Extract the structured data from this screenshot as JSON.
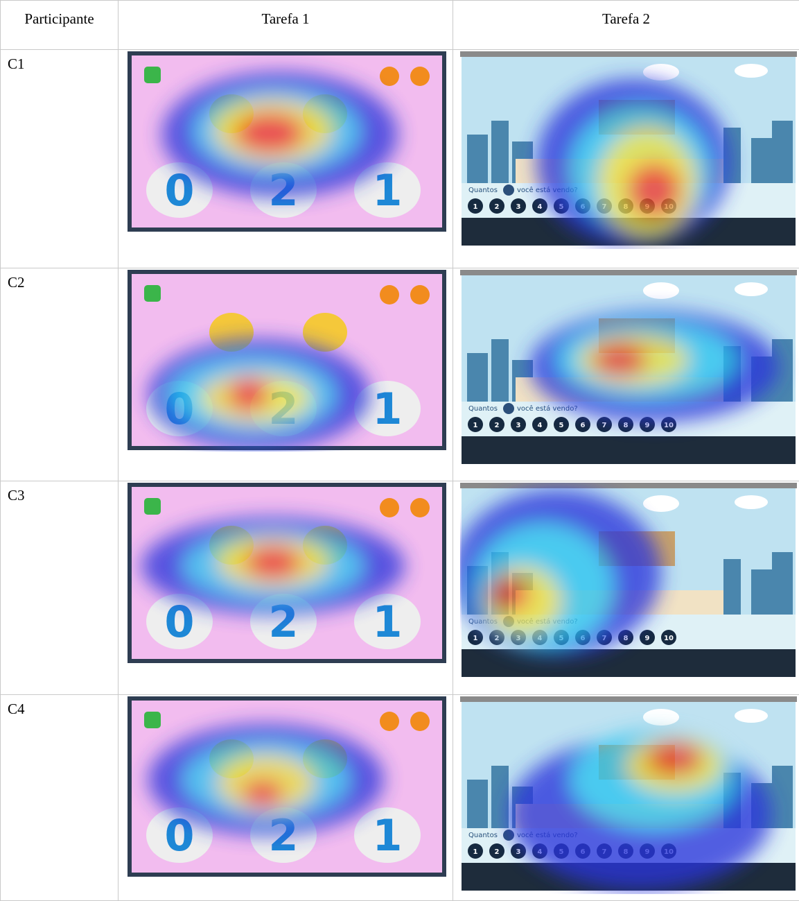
{
  "table": {
    "header": [
      "Participante",
      "Tarefa 1",
      "Tarefa 2"
    ],
    "rows": [
      "C1",
      "C2",
      "C3",
      "C4"
    ]
  },
  "screens": {
    "task1": {
      "digits": [
        "0",
        "2",
        "1"
      ]
    },
    "task2": {
      "question_start": "Quantos",
      "question_end": "você está vendo?",
      "numbers": [
        "1",
        "2",
        "3",
        "4",
        "5",
        "6",
        "7",
        "8",
        "9",
        "10"
      ]
    }
  }
}
